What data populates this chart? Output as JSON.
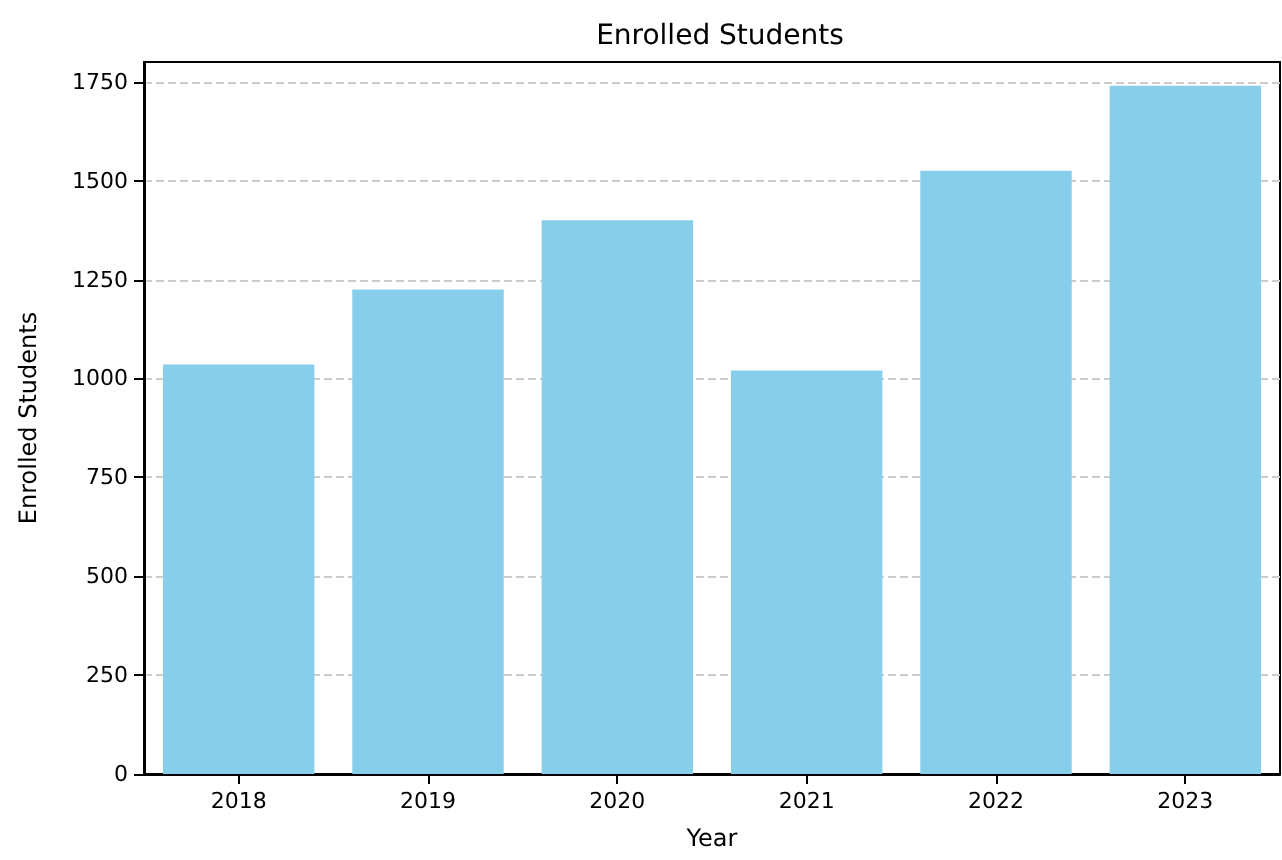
{
  "chart_data": {
    "type": "bar",
    "title": "Enrolled Students",
    "xlabel": "Year",
    "ylabel": "Enrolled Students",
    "categories": [
      "2018",
      "2019",
      "2020",
      "2021",
      "2022",
      "2023"
    ],
    "values": [
      1035,
      1225,
      1400,
      1020,
      1525,
      1740
    ],
    "color": "#87ceeb",
    "ylim": [
      0,
      1800
    ],
    "yticks": [
      0,
      250,
      500,
      750,
      1000,
      1250,
      1500,
      1750
    ],
    "grid": "y"
  }
}
